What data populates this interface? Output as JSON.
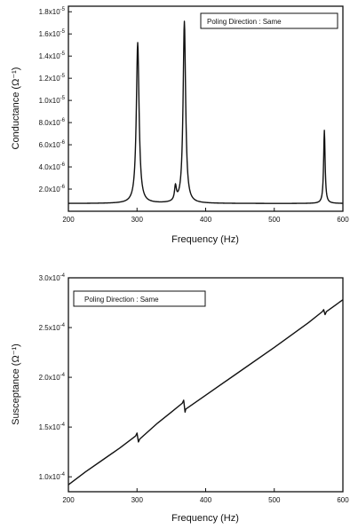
{
  "chart_data": [
    {
      "type": "line",
      "panel": "top",
      "annotation": "Poling Direction : Same",
      "xlabel": "Frequency (Hz)",
      "ylabel": "Conductance (Ω⁻¹)",
      "xlim": [
        200,
        600
      ],
      "ylim": [
        0.0,
        1.85e-05
      ],
      "x_ticks": [
        200,
        300,
        400,
        500,
        600
      ],
      "y_ticks": [
        {
          "value": 2e-06,
          "mantissa": "2.0x10",
          "exp": "-6"
        },
        {
          "value": 4e-06,
          "mantissa": "4.0x10",
          "exp": "-6"
        },
        {
          "value": 6e-06,
          "mantissa": "6.0x10",
          "exp": "-6"
        },
        {
          "value": 8e-06,
          "mantissa": "8.0x10",
          "exp": "-6"
        },
        {
          "value": 1e-05,
          "mantissa": "1.0x10",
          "exp": "-5"
        },
        {
          "value": 1.2e-05,
          "mantissa": "1.2x10",
          "exp": "-5"
        },
        {
          "value": 1.4e-05,
          "mantissa": "1.4x10",
          "exp": "-5"
        },
        {
          "value": 1.6e-05,
          "mantissa": "1.6x10",
          "exp": "-5"
        },
        {
          "value": 1.8e-05,
          "mantissa": "1.8x10",
          "exp": "-5"
        }
      ],
      "baseline": 7e-07,
      "peaks": [
        {
          "center": 301,
          "height": 1.52e-05,
          "width": 2.4
        },
        {
          "center": 356,
          "height": 2e-06,
          "width": 1.6
        },
        {
          "center": 369,
          "height": 1.71e-05,
          "width": 2.2
        },
        {
          "center": 573,
          "height": 7.3e-06,
          "width": 1.3
        }
      ]
    },
    {
      "type": "line",
      "panel": "bottom",
      "annotation": "Poling Direction : Same",
      "xlabel": "Frequency (Hz)",
      "ylabel": "Susceptance (Ω⁻¹)",
      "xlim": [
        200,
        600
      ],
      "ylim": [
        8.5e-05,
        0.0003
      ],
      "x_ticks": [
        200,
        300,
        400,
        500,
        600
      ],
      "y_ticks": [
        {
          "value": 0.0001,
          "mantissa": "1.0x10",
          "exp": "-4"
        },
        {
          "value": 0.00015,
          "mantissa": "1.5x10",
          "exp": "-4"
        },
        {
          "value": 0.0002,
          "mantissa": "2.0x10",
          "exp": "-4"
        },
        {
          "value": 0.00025,
          "mantissa": "2.5x10",
          "exp": "-4"
        },
        {
          "value": 0.0003,
          "mantissa": "3.0x10",
          "exp": "-4"
        }
      ],
      "x": [
        200,
        225,
        250,
        275,
        298,
        300,
        302,
        304,
        330,
        350,
        366,
        368,
        370,
        371,
        400,
        450,
        500,
        550,
        570,
        572,
        574,
        576,
        590,
        600
      ],
      "y": [
        9.2e-05,
        0.000105,
        0.000117,
        0.000129,
        0.000141,
        0.000144,
        0.000135,
        0.000138,
        0.000154,
        0.000165,
        0.000174,
        0.000177,
        0.000165,
        0.000168,
        0.000182,
        0.000206,
        0.00023,
        0.000255,
        0.000266,
        0.000268,
        0.000263,
        0.000266,
        0.000273,
        0.000278
      ]
    }
  ]
}
